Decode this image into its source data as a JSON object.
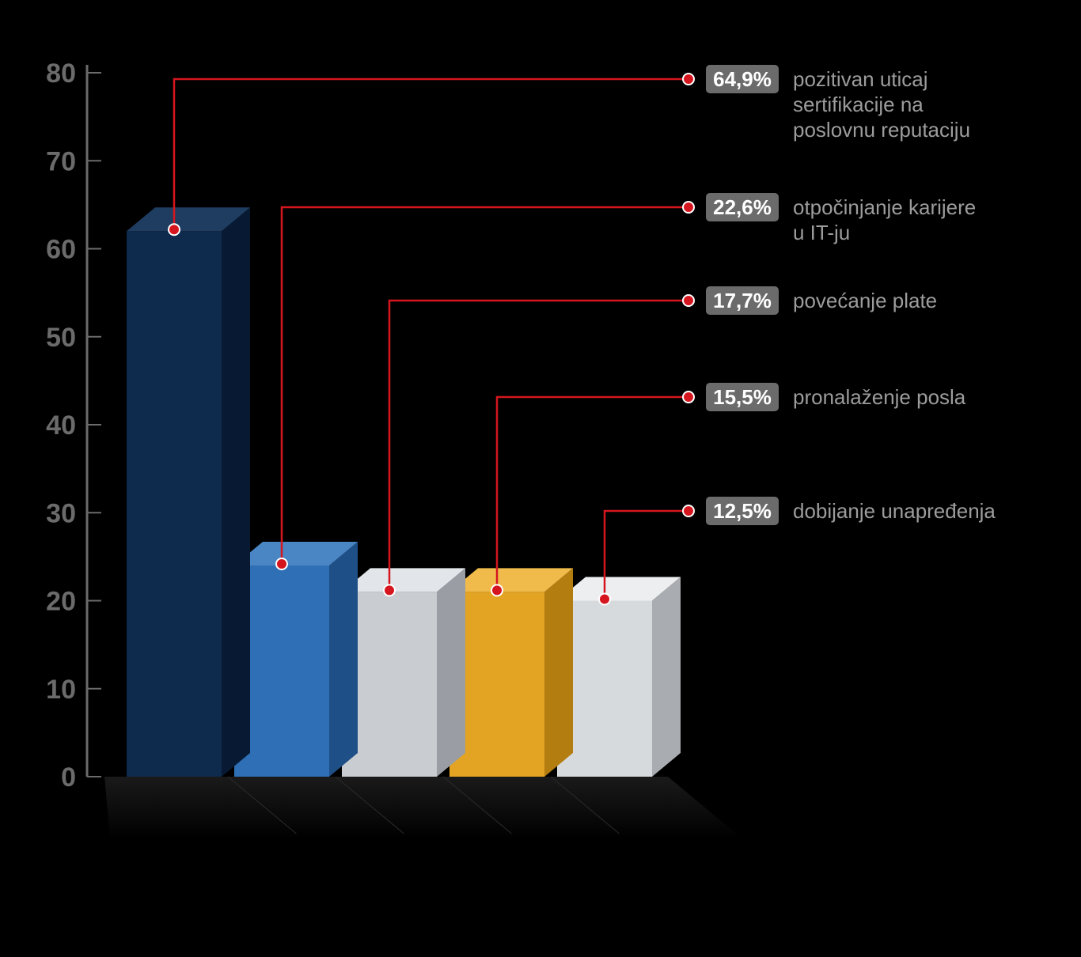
{
  "chart": {
    "type": "bar",
    "background_color": "#000000",
    "axis_color": "#6b6b6b",
    "axis_fontsize": 34,
    "axis_fontweight": 700,
    "leader_color": "#d6161e",
    "dot_fill": "#d6161e",
    "dot_stroke": "#ffffff",
    "badge_bg": "#6b6b6b",
    "badge_text_color": "#ffffff",
    "badge_fontsize": 26,
    "desc_color": "#9c9c9c",
    "desc_fontsize": 26,
    "y_ticks": [
      0,
      10,
      20,
      30,
      40,
      50,
      60,
      70,
      80
    ],
    "y_tick_labels": [
      "0",
      "10",
      "20",
      "30",
      "40",
      "50",
      "60",
      "70",
      "80"
    ],
    "ylim": [
      0,
      80
    ],
    "bars": [
      {
        "value": 64.9,
        "axis_value": 62,
        "front": "#0e2a4c",
        "top": "#1f3d60",
        "side": "#081a33",
        "badge": "64,9%",
        "desc": [
          "pozitivan uticaj",
          "sertifikacije na",
          "poslovnu reputaciju"
        ]
      },
      {
        "value": 22.6,
        "axis_value": 24,
        "front": "#2f6fb5",
        "top": "#4a86c4",
        "side": "#1f4f87",
        "badge": "22,6%",
        "desc": [
          "otpočinjanje karijere",
          "u IT-ju"
        ]
      },
      {
        "value": 17.7,
        "axis_value": 21,
        "front": "#c9cdd2",
        "top": "#e2e5e9",
        "side": "#9a9ea4",
        "badge": "17,7%",
        "desc": [
          "povećanje plate"
        ]
      },
      {
        "value": 15.5,
        "axis_value": 21,
        "front": "#e3a423",
        "top": "#f0bb4b",
        "side": "#b47d10",
        "badge": "15,5%",
        "desc": [
          "pronalaženje posla"
        ]
      },
      {
        "value": 12.5,
        "axis_value": 20,
        "front": "#d7dadd",
        "top": "#eceef0",
        "side": "#a9acb0",
        "badge": "12,5%",
        "desc": [
          "dobijanje unapređenja"
        ]
      }
    ]
  }
}
